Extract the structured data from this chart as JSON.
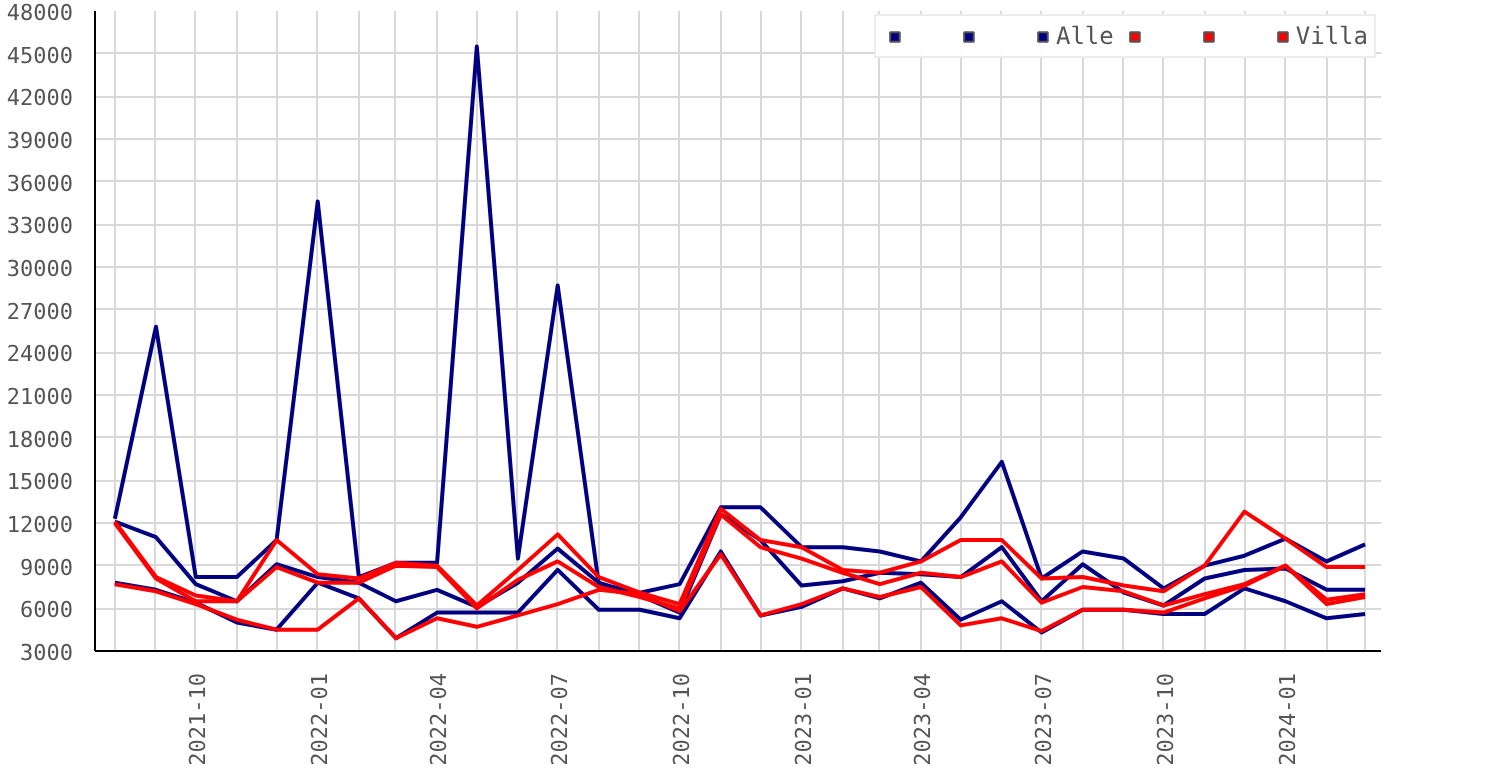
{
  "chart_data": {
    "type": "line",
    "x": [
      "2021-08",
      "2021-09",
      "2021-10",
      "2021-11",
      "2021-12",
      "2022-01",
      "2022-02",
      "2022-03",
      "2022-04",
      "2022-05",
      "2022-06",
      "2022-07",
      "2022-08",
      "2022-09",
      "2022-10",
      "2022-11",
      "2022-12",
      "2023-01",
      "2023-02",
      "2023-03",
      "2023-04",
      "2023-05",
      "2023-06",
      "2023-07",
      "2023-08",
      "2023-09",
      "2023-10",
      "2023-11",
      "2023-12",
      "2024-01",
      "2024-02",
      "2024-03"
    ],
    "series": [
      {
        "name": null,
        "color": "#000080",
        "values": [
          12300,
          25800,
          8200,
          8200,
          10800,
          34600,
          8200,
          9200,
          9200,
          45500,
          9500,
          28700,
          7700,
          7100,
          7700,
          13100,
          13100,
          10300,
          10300,
          10000,
          9300,
          12400,
          16300,
          8100,
          10000,
          9500,
          7400,
          9000,
          9700,
          10900,
          9300,
          10500
        ]
      },
      {
        "name": null,
        "color": "#000080",
        "values": [
          7800,
          7300,
          6400,
          5000,
          4500,
          7800,
          6700,
          3900,
          5700,
          5700,
          5700,
          8700,
          5900,
          5900,
          5300,
          10000,
          5500,
          6100,
          7400,
          6700,
          7800,
          5200,
          6500,
          4300,
          5900,
          5900,
          5600,
          5600,
          7400,
          6500,
          5300,
          5600
        ]
      },
      {
        "name": "Alle",
        "color": "#000080",
        "values": [
          12100,
          11000,
          7700,
          6500,
          9100,
          8200,
          7800,
          6500,
          7300,
          6100,
          7800,
          10200,
          7800,
          6900,
          5700,
          12600,
          10800,
          7600,
          7900,
          8500,
          8400,
          8200,
          10300,
          6500,
          9100,
          7100,
          6200,
          8100,
          8700,
          8800,
          7300,
          7300
        ]
      },
      {
        "name": null,
        "color": "#ff0000",
        "values": [
          12100,
          8200,
          6900,
          6500,
          10800,
          8400,
          8100,
          9200,
          9000,
          6200,
          8700,
          11200,
          8200,
          7100,
          6300,
          13000,
          10800,
          10300,
          8700,
          8500,
          9300,
          10800,
          10800,
          8100,
          8200,
          7600,
          7200,
          9000,
          12800,
          10900,
          8900,
          8900
        ]
      },
      {
        "name": null,
        "color": "#ff0000",
        "values": [
          7700,
          7200,
          6300,
          5200,
          4500,
          4500,
          6700,
          3900,
          5300,
          4700,
          5500,
          6300,
          7300,
          7000,
          5800,
          9800,
          5500,
          6300,
          7400,
          6800,
          7500,
          4800,
          5300,
          4400,
          5900,
          5900,
          5700,
          6700,
          7600,
          9000,
          6600,
          7000
        ]
      },
      {
        "name": "Villa",
        "color": "#ff0000",
        "values": [
          12000,
          8100,
          6500,
          6500,
          8900,
          7800,
          7800,
          9000,
          8900,
          6000,
          8000,
          9300,
          7500,
          6800,
          6000,
          12600,
          10300,
          9500,
          8500,
          7700,
          8500,
          8200,
          9300,
          6400,
          7500,
          7200,
          6200,
          7000,
          7700,
          9000,
          6300,
          6800
        ]
      }
    ],
    "xlim": [
      "2021-07-17",
      "2024-03-13"
    ],
    "xticks": [
      {
        "value": "2021-08",
        "label": null
      },
      {
        "value": "2021-09",
        "label": null
      },
      "2021-10",
      {
        "value": "2021-11",
        "label": null
      },
      {
        "value": "2021-12",
        "label": null
      },
      "2022-01",
      {
        "value": "2022-02",
        "label": null
      },
      {
        "value": "2022-03",
        "label": null
      },
      "2022-04",
      {
        "value": "2022-05",
        "label": null
      },
      {
        "value": "2022-06",
        "label": null
      },
      "2022-07",
      {
        "value": "2022-08",
        "label": null
      },
      {
        "value": "2022-09",
        "label": null
      },
      "2022-10",
      {
        "value": "2022-11",
        "label": null
      },
      {
        "value": "2022-12",
        "label": null
      },
      "2023-01",
      {
        "value": "2023-02",
        "label": null
      },
      {
        "value": "2023-03",
        "label": null
      },
      "2023-04",
      {
        "value": "2023-05",
        "label": null
      },
      {
        "value": "2023-06",
        "label": null
      },
      "2023-07",
      {
        "value": "2023-08",
        "label": null
      },
      {
        "value": "2023-09",
        "label": null
      },
      "2023-10",
      {
        "value": "2023-11",
        "label": null
      },
      {
        "value": "2023-12",
        "label": null
      },
      "2024-01",
      {
        "value": "2024-02",
        "label": null
      },
      {
        "value": "2024-03",
        "label": null
      }
    ],
    "ylim": [
      3000,
      48000
    ],
    "yticks": [
      3000,
      6000,
      9000,
      12000,
      15000,
      18000,
      21000,
      24000,
      27000,
      30000,
      33000,
      36000,
      39000,
      42000,
      45000,
      48000
    ],
    "grid": true,
    "legend": "top right"
  }
}
